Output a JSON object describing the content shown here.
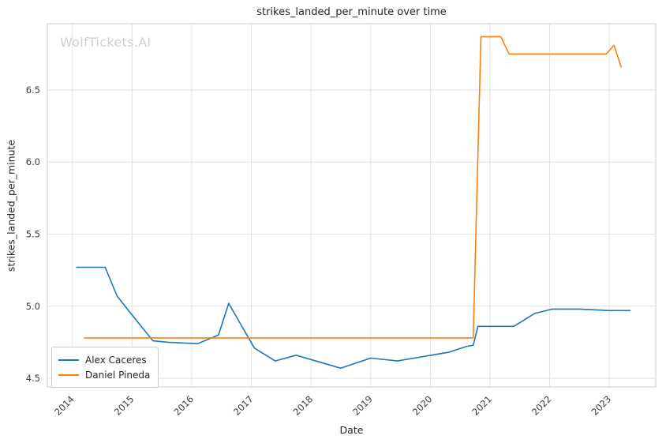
{
  "chart_data": {
    "type": "line",
    "title": "strikes_landed_per_minute over time",
    "xlabel": "Date",
    "ylabel": "strikes_landed_per_minute",
    "watermark": "WolfTickets.AI",
    "xlim": [
      2013.58,
      2023.78
    ],
    "ylim": [
      4.44,
      6.96
    ],
    "xticks": [
      2014,
      2015,
      2016,
      2017,
      2018,
      2019,
      2020,
      2021,
      2022,
      2023
    ],
    "yticks": [
      4.5,
      5.0,
      5.5,
      6.0,
      6.5
    ],
    "grid": true,
    "legend_position": "lower left",
    "series": [
      {
        "name": "Alex Caceres",
        "color": "#1f77b4",
        "points": [
          [
            2014.07,
            5.27
          ],
          [
            2014.55,
            5.27
          ],
          [
            2014.75,
            5.07
          ],
          [
            2015.0,
            4.94
          ],
          [
            2015.35,
            4.76
          ],
          [
            2015.6,
            4.75
          ],
          [
            2016.1,
            4.74
          ],
          [
            2016.45,
            4.8
          ],
          [
            2016.62,
            5.02
          ],
          [
            2017.05,
            4.71
          ],
          [
            2017.4,
            4.62
          ],
          [
            2017.75,
            4.66
          ],
          [
            2018.5,
            4.57
          ],
          [
            2019.0,
            4.64
          ],
          [
            2019.45,
            4.62
          ],
          [
            2020.3,
            4.68
          ],
          [
            2020.6,
            4.72
          ],
          [
            2020.72,
            4.73
          ],
          [
            2020.8,
            4.86
          ],
          [
            2021.4,
            4.86
          ],
          [
            2021.75,
            4.95
          ],
          [
            2022.05,
            4.98
          ],
          [
            2022.5,
            4.98
          ],
          [
            2023.0,
            4.97
          ],
          [
            2023.35,
            4.97
          ]
        ]
      },
      {
        "name": "Daniel Pineda",
        "color": "#ff7f0e",
        "points": [
          [
            2014.2,
            4.78
          ],
          [
            2020.72,
            4.78
          ],
          [
            2020.85,
            6.87
          ],
          [
            2021.18,
            6.87
          ],
          [
            2021.32,
            6.75
          ],
          [
            2022.95,
            6.75
          ],
          [
            2023.08,
            6.81
          ],
          [
            2023.2,
            6.66
          ]
        ]
      }
    ]
  }
}
